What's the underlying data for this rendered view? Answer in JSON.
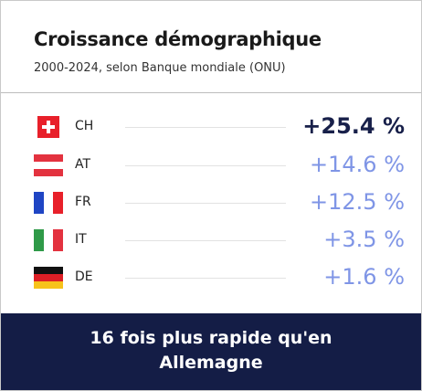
{
  "header": {
    "title": "Croissance démographique",
    "subtitle": "2000-2024, selon Banque mondiale (ONU)"
  },
  "rows": [
    {
      "code": "CH",
      "value": "+25.4 %"
    },
    {
      "code": "AT",
      "value": "+14.6 %"
    },
    {
      "code": "FR",
      "value": "+12.5 %"
    },
    {
      "code": "IT",
      "value": "+3.5 %"
    },
    {
      "code": "DE",
      "value": "+1.6 %"
    }
  ],
  "footer": {
    "line1": "16 fois plus rapide qu'en",
    "line2": "Allemagne"
  }
}
